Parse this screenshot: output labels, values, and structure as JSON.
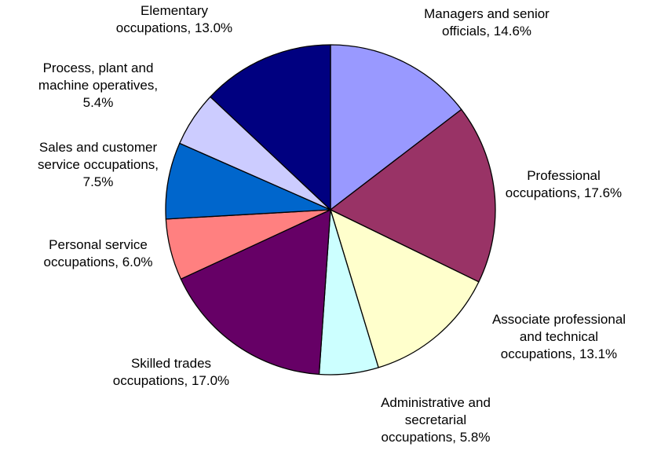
{
  "chart_data": {
    "type": "pie",
    "title": "",
    "start_angle_deg": 0,
    "direction": "clockwise",
    "legend": "none",
    "slices": [
      {
        "name": "Managers and senior officials",
        "value": 14.6,
        "color": "#9999FF",
        "label_lines": [
          "Managers and senior",
          "officials, 14.6%"
        ]
      },
      {
        "name": "Professional occupations",
        "value": 17.6,
        "color": "#993366",
        "label_lines": [
          "Professional",
          "occupations, 17.6%"
        ]
      },
      {
        "name": "Associate professional and technical occupations",
        "value": 13.1,
        "color": "#FFFFCC",
        "label_lines": [
          "Associate professional",
          "and technical",
          "occupations, 13.1%"
        ]
      },
      {
        "name": "Administrative and secretarial occupations",
        "value": 5.8,
        "color": "#CCFFFF",
        "label_lines": [
          "Administrative and",
          "secretarial",
          "occupations, 5.8%"
        ]
      },
      {
        "name": "Skilled trades occupations",
        "value": 17.0,
        "color": "#660066",
        "label_lines": [
          "Skilled trades",
          "occupations, 17.0%"
        ]
      },
      {
        "name": "Personal service occupations",
        "value": 6.0,
        "color": "#FF8080",
        "label_lines": [
          "Personal service",
          "occupations, 6.0%"
        ]
      },
      {
        "name": "Sales and customer service occupations",
        "value": 7.5,
        "color": "#0066CC",
        "label_lines": [
          "Sales and customer",
          "service occupations,",
          "7.5%"
        ]
      },
      {
        "name": "Process, plant and machine operatives",
        "value": 5.4,
        "color": "#CCCCFF",
        "label_lines": [
          "Process, plant and",
          "machine operatives,",
          "5.4%"
        ]
      },
      {
        "name": "Elementary occupations",
        "value": 13.0,
        "color": "#000080",
        "label_lines": [
          "Elementary",
          "occupations, 13.0%"
        ]
      }
    ]
  }
}
